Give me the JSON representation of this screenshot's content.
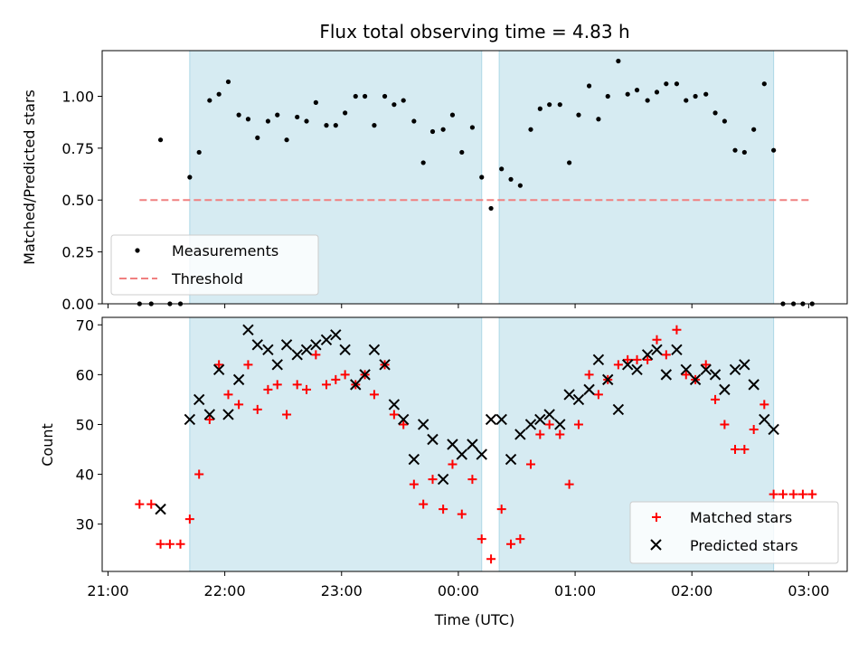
{
  "chart_data": [
    {
      "type": "scatter",
      "title": "Flux total observing time = 4.83 h",
      "ylabel": "Matched/Predicted stars",
      "ylim": [
        0,
        1.22
      ],
      "yticks": [
        "0.00",
        "0.25",
        "0.50",
        "0.75",
        "1.00"
      ],
      "ytick_values": [
        0,
        0.25,
        0.5,
        0.75,
        1.0
      ],
      "xlim": [
        -0.05,
        6.33
      ],
      "shaded_intervals": [
        [
          0.7,
          3.2
        ],
        [
          3.35,
          5.7
        ]
      ],
      "shade_color": "#add8e6",
      "legend_location": "lower-left",
      "series": [
        {
          "name": "Measurements",
          "marker": "dot",
          "color": "#000000",
          "points": [
            [
              0.27,
              0.0
            ],
            [
              0.37,
              0.0
            ],
            [
              0.45,
              0.79
            ],
            [
              0.53,
              0.0
            ],
            [
              0.62,
              0.0
            ],
            [
              0.7,
              0.61
            ],
            [
              0.78,
              0.73
            ],
            [
              0.87,
              0.98
            ],
            [
              0.95,
              1.01
            ],
            [
              1.03,
              1.07
            ],
            [
              1.12,
              0.91
            ],
            [
              1.2,
              0.89
            ],
            [
              1.28,
              0.8
            ],
            [
              1.37,
              0.88
            ],
            [
              1.45,
              0.91
            ],
            [
              1.53,
              0.79
            ],
            [
              1.62,
              0.9
            ],
            [
              1.7,
              0.88
            ],
            [
              1.78,
              0.97
            ],
            [
              1.87,
              0.86
            ],
            [
              1.95,
              0.86
            ],
            [
              2.03,
              0.92
            ],
            [
              2.12,
              1.0
            ],
            [
              2.2,
              1.0
            ],
            [
              2.28,
              0.86
            ],
            [
              2.37,
              1.0
            ],
            [
              2.45,
              0.96
            ],
            [
              2.53,
              0.98
            ],
            [
              2.62,
              0.88
            ],
            [
              2.7,
              0.68
            ],
            [
              2.78,
              0.83
            ],
            [
              2.87,
              0.84
            ],
            [
              2.95,
              0.91
            ],
            [
              3.03,
              0.73
            ],
            [
              3.12,
              0.85
            ],
            [
              3.2,
              0.61
            ],
            [
              3.28,
              0.46
            ],
            [
              3.37,
              0.65
            ],
            [
              3.45,
              0.6
            ],
            [
              3.53,
              0.57
            ],
            [
              3.62,
              0.84
            ],
            [
              3.7,
              0.94
            ],
            [
              3.78,
              0.96
            ],
            [
              3.87,
              0.96
            ],
            [
              3.95,
              0.68
            ],
            [
              4.03,
              0.91
            ],
            [
              4.12,
              1.05
            ],
            [
              4.2,
              0.89
            ],
            [
              4.28,
              1.0
            ],
            [
              4.37,
              1.17
            ],
            [
              4.45,
              1.01
            ],
            [
              4.53,
              1.03
            ],
            [
              4.62,
              0.98
            ],
            [
              4.7,
              1.02
            ],
            [
              4.78,
              1.06
            ],
            [
              4.87,
              1.06
            ],
            [
              4.95,
              0.98
            ],
            [
              5.03,
              1.0
            ],
            [
              5.12,
              1.01
            ],
            [
              5.2,
              0.92
            ],
            [
              5.28,
              0.88
            ],
            [
              5.37,
              0.74
            ],
            [
              5.45,
              0.73
            ],
            [
              5.53,
              0.84
            ],
            [
              5.62,
              1.06
            ],
            [
              5.7,
              0.74
            ],
            [
              5.78,
              0.0
            ],
            [
              5.87,
              0.0
            ],
            [
              5.95,
              0.0
            ],
            [
              6.03,
              0.0
            ]
          ]
        },
        {
          "name": "Threshold",
          "marker": "dashed-line",
          "color": "#f08080",
          "points": [
            [
              0.27,
              0.5
            ],
            [
              6.03,
              0.5
            ]
          ]
        }
      ]
    },
    {
      "type": "scatter",
      "title": "",
      "xlabel": "Time (UTC)",
      "ylabel": "Count",
      "ylim": [
        20.5,
        71.5
      ],
      "yticks": [
        "30",
        "40",
        "50",
        "60",
        "70"
      ],
      "ytick_values": [
        30,
        40,
        50,
        60,
        70
      ],
      "xlim": [
        -0.05,
        6.33
      ],
      "xticks": [
        "21:00",
        "22:00",
        "23:00",
        "00:00",
        "01:00",
        "02:00",
        "03:00"
      ],
      "xtick_values": [
        0,
        1,
        2,
        3,
        4,
        5,
        6
      ],
      "shaded_intervals": [
        [
          0.7,
          3.2
        ],
        [
          3.35,
          5.7
        ]
      ],
      "shade_color": "#add8e6",
      "legend_location": "lower-right",
      "series": [
        {
          "name": "Matched stars",
          "marker": "plus",
          "color": "#ff0000",
          "points": [
            [
              0.27,
              34
            ],
            [
              0.37,
              34
            ],
            [
              0.45,
              26
            ],
            [
              0.53,
              26
            ],
            [
              0.62,
              26
            ],
            [
              0.7,
              31
            ],
            [
              0.78,
              40
            ],
            [
              0.87,
              51
            ],
            [
              0.95,
              62
            ],
            [
              1.03,
              56
            ],
            [
              1.12,
              54
            ],
            [
              1.2,
              62
            ],
            [
              1.28,
              53
            ],
            [
              1.37,
              57
            ],
            [
              1.45,
              58
            ],
            [
              1.53,
              52
            ],
            [
              1.62,
              58
            ],
            [
              1.7,
              57
            ],
            [
              1.78,
              64
            ],
            [
              1.87,
              58
            ],
            [
              1.95,
              59
            ],
            [
              2.03,
              60
            ],
            [
              2.12,
              58
            ],
            [
              2.2,
              60
            ],
            [
              2.28,
              56
            ],
            [
              2.37,
              62
            ],
            [
              2.45,
              52
            ],
            [
              2.53,
              50
            ],
            [
              2.62,
              38
            ],
            [
              2.7,
              34
            ],
            [
              2.78,
              39
            ],
            [
              2.87,
              33
            ],
            [
              2.95,
              42
            ],
            [
              3.03,
              32
            ],
            [
              3.12,
              39
            ],
            [
              3.2,
              27
            ],
            [
              3.28,
              23
            ],
            [
              3.37,
              33
            ],
            [
              3.45,
              26
            ],
            [
              3.53,
              27
            ],
            [
              3.62,
              42
            ],
            [
              3.7,
              48
            ],
            [
              3.78,
              50
            ],
            [
              3.87,
              48
            ],
            [
              3.95,
              38
            ],
            [
              4.03,
              50
            ],
            [
              4.12,
              60
            ],
            [
              4.2,
              56
            ],
            [
              4.28,
              59
            ],
            [
              4.37,
              62
            ],
            [
              4.45,
              63
            ],
            [
              4.53,
              63
            ],
            [
              4.62,
              63
            ],
            [
              4.7,
              67
            ],
            [
              4.78,
              64
            ],
            [
              4.87,
              69
            ],
            [
              4.95,
              60
            ],
            [
              5.03,
              59
            ],
            [
              5.12,
              62
            ],
            [
              5.2,
              55
            ],
            [
              5.28,
              50
            ],
            [
              5.37,
              45
            ],
            [
              5.45,
              45
            ],
            [
              5.53,
              49
            ],
            [
              5.62,
              54
            ],
            [
              5.7,
              36
            ],
            [
              5.78,
              36
            ],
            [
              5.87,
              36
            ],
            [
              5.95,
              36
            ],
            [
              6.03,
              36
            ]
          ]
        },
        {
          "name": "Predicted stars",
          "marker": "x",
          "color": "#000000",
          "points": [
            [
              0.45,
              33
            ],
            [
              0.7,
              51
            ],
            [
              0.78,
              55
            ],
            [
              0.87,
              52
            ],
            [
              0.95,
              61
            ],
            [
              1.03,
              52
            ],
            [
              1.12,
              59
            ],
            [
              1.2,
              69
            ],
            [
              1.28,
              66
            ],
            [
              1.37,
              65
            ],
            [
              1.45,
              62
            ],
            [
              1.53,
              66
            ],
            [
              1.62,
              64
            ],
            [
              1.7,
              65
            ],
            [
              1.78,
              66
            ],
            [
              1.87,
              67
            ],
            [
              1.95,
              68
            ],
            [
              2.03,
              65
            ],
            [
              2.12,
              58
            ],
            [
              2.2,
              60
            ],
            [
              2.28,
              65
            ],
            [
              2.37,
              62
            ],
            [
              2.45,
              54
            ],
            [
              2.53,
              51
            ],
            [
              2.62,
              43
            ],
            [
              2.7,
              50
            ],
            [
              2.78,
              47
            ],
            [
              2.87,
              39
            ],
            [
              2.95,
              46
            ],
            [
              3.03,
              44
            ],
            [
              3.12,
              46
            ],
            [
              3.2,
              44
            ],
            [
              3.28,
              51
            ],
            [
              3.37,
              51
            ],
            [
              3.45,
              43
            ],
            [
              3.53,
              48
            ],
            [
              3.62,
              50
            ],
            [
              3.7,
              51
            ],
            [
              3.78,
              52
            ],
            [
              3.87,
              50
            ],
            [
              3.95,
              56
            ],
            [
              4.03,
              55
            ],
            [
              4.12,
              57
            ],
            [
              4.2,
              63
            ],
            [
              4.28,
              59
            ],
            [
              4.37,
              53
            ],
            [
              4.45,
              62
            ],
            [
              4.53,
              61
            ],
            [
              4.62,
              64
            ],
            [
              4.7,
              65
            ],
            [
              4.78,
              60
            ],
            [
              4.87,
              65
            ],
            [
              4.95,
              61
            ],
            [
              5.03,
              59
            ],
            [
              5.12,
              61
            ],
            [
              5.2,
              60
            ],
            [
              5.28,
              57
            ],
            [
              5.37,
              61
            ],
            [
              5.45,
              62
            ],
            [
              5.53,
              58
            ],
            [
              5.62,
              51
            ],
            [
              5.7,
              49
            ]
          ]
        }
      ]
    }
  ]
}
